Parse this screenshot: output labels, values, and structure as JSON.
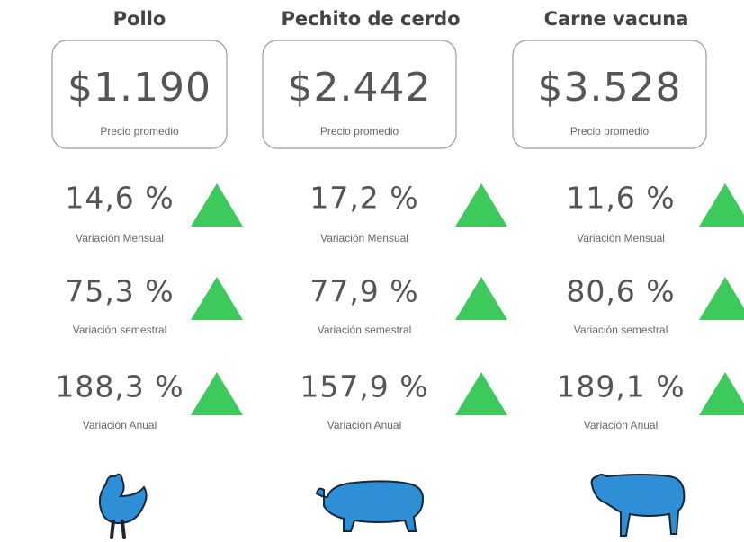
{
  "columns": [
    {
      "title": "Pollo",
      "price": "$1.190",
      "price_label": "Precio promedio",
      "variations": [
        {
          "value": "14,6 %",
          "label": "Variación Mensual"
        },
        {
          "value": "75,3 %",
          "label": "Variación semestral"
        },
        {
          "value": "188,3 %",
          "label": "Variación Anual"
        }
      ]
    },
    {
      "title": "Pechito de cerdo",
      "price": "$2.442",
      "price_label": "Precio promedio",
      "variations": [
        {
          "value": "17,2 %",
          "label": "Variación Mensual"
        },
        {
          "value": "77,9 %",
          "label": "Variación semestral"
        },
        {
          "value": "157,9 %",
          "label": "Variación Anual"
        }
      ]
    },
    {
      "title": "Carne vacuna",
      "price": "$3.528",
      "price_label": "Precio promedio",
      "variations": [
        {
          "value": "11,6 %",
          "label": "Variación Mensual"
        },
        {
          "value": "80,6 %",
          "label": "Variación semestral"
        },
        {
          "value": "189,1 %",
          "label": "Variación Anual"
        }
      ]
    }
  ]
}
